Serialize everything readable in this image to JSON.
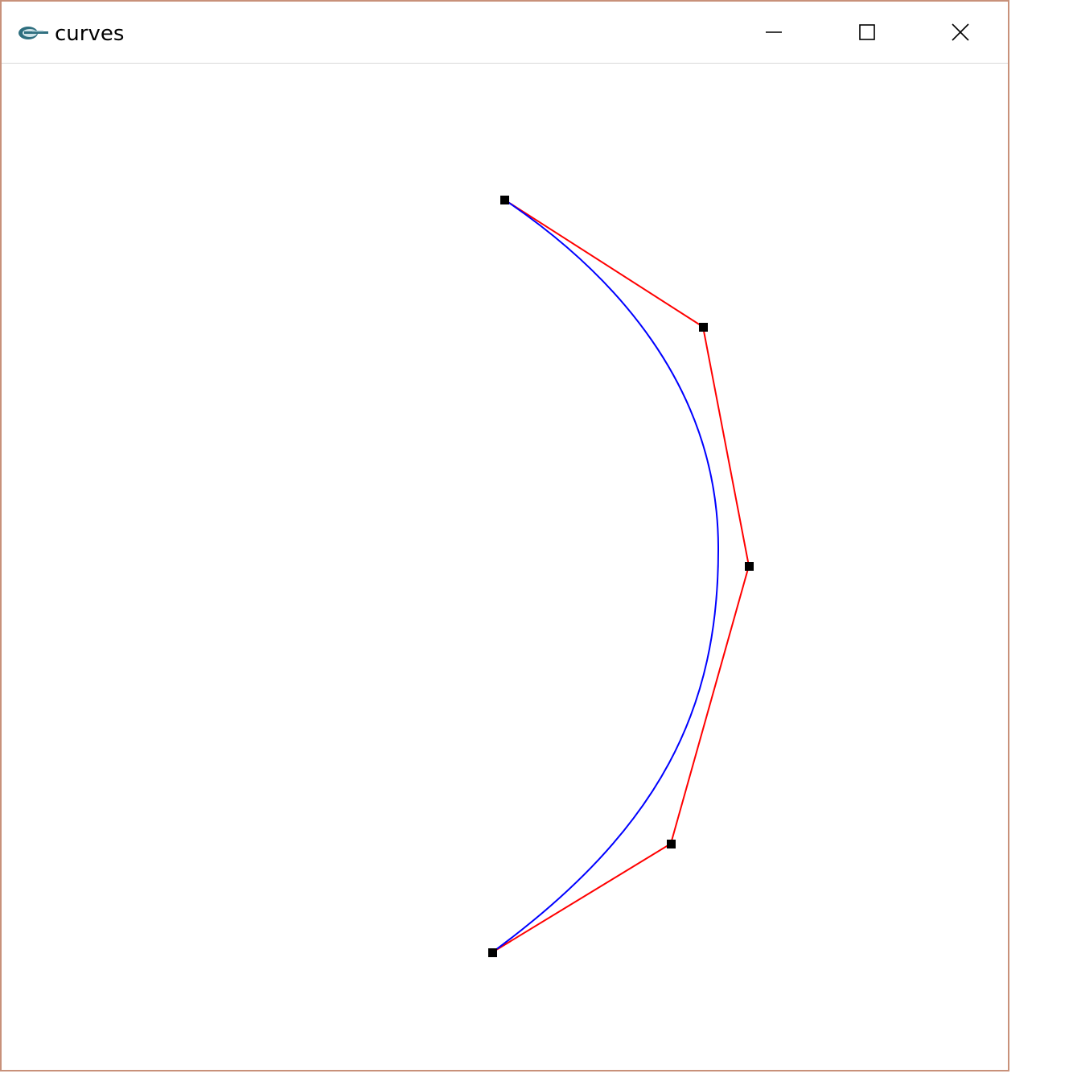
{
  "window": {
    "title": "curves",
    "app_icon": "eclipse-app-icon",
    "controls": {
      "minimize": "minimize-icon",
      "maximize": "maximize-icon",
      "close": "close-icon"
    }
  },
  "colors": {
    "control_polygon": "#ff0000",
    "curve": "#0000ff",
    "control_point": "#000000",
    "window_border": "#c8917a",
    "background": "#ffffff"
  }
}
